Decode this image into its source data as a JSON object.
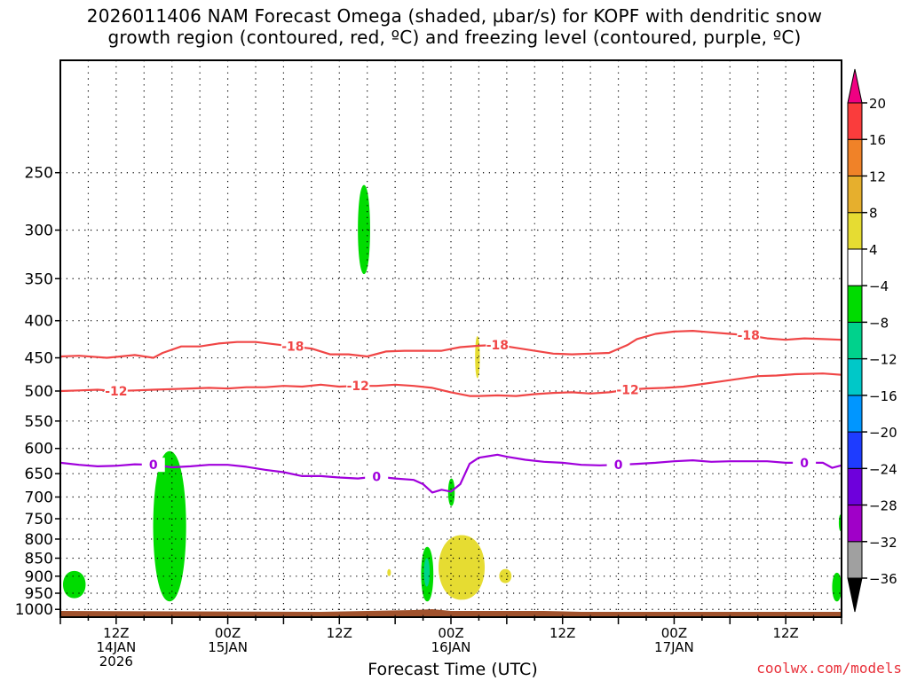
{
  "title_lines": [
    "2026011406 NAM Forecast Omega (shaded, µbar/s) for KOPF with dendritic snow",
    "growth region (contoured, red, ºC) and freezing level (contoured, purple, ºC)"
  ],
  "credit": "coolwx.com/models",
  "chart_data": {
    "type": "heatmap",
    "title": "2026011406 NAM Forecast Omega (shaded, µbar/s) for KOPF with dendritic snow growth region (contoured, red, ºC) and freezing level (contoured, purple, ºC)",
    "xlabel": "Forecast Time (UTC)",
    "ylabel": "",
    "x_unit": "hours since 2026-01-14 06Z",
    "xlim": [
      0,
      84
    ],
    "x_ticks": [
      {
        "hour": 6,
        "labels": [
          "12Z",
          "14JAN",
          "2026"
        ]
      },
      {
        "hour": 18,
        "labels": [
          "00Z",
          "15JAN"
        ]
      },
      {
        "hour": 30,
        "labels": [
          "12Z"
        ]
      },
      {
        "hour": 42,
        "labels": [
          "00Z",
          "16JAN"
        ]
      },
      {
        "hour": 54,
        "labels": [
          "12Z"
        ]
      },
      {
        "hour": 66,
        "labels": [
          "00Z",
          "17JAN"
        ]
      },
      {
        "hour": 78,
        "labels": [
          "12Z"
        ]
      }
    ],
    "y_scale": "log-pressure (hPa), inverted",
    "ylim": [
      1025,
      175
    ],
    "y_ticks": [
      250,
      300,
      350,
      400,
      450,
      500,
      550,
      600,
      650,
      700,
      750,
      800,
      850,
      900,
      950,
      1000
    ],
    "grid": true,
    "colorbar": {
      "levels": [
        -36,
        -32,
        -28,
        -24,
        -20,
        -16,
        -12,
        -8,
        -4,
        4,
        8,
        12,
        16,
        20
      ],
      "colors": [
        "#000000",
        "#a0a0a0",
        "#a000c8",
        "#6e00dc",
        "#1e3cff",
        "#0096ff",
        "#00c8c8",
        "#00d28c",
        "#00dc00",
        "#ffffff",
        "#e6dc32",
        "#e6af2d",
        "#f08228",
        "#fa3c3c",
        "#f00082"
      ]
    },
    "contours": [
      {
        "label": "-18",
        "color": "#f04646",
        "points": [
          [
            0,
            448
          ],
          [
            2,
            447
          ],
          [
            5,
            450
          ],
          [
            8,
            446
          ],
          [
            10,
            450
          ],
          [
            11,
            443
          ],
          [
            13,
            434
          ],
          [
            15,
            434
          ],
          [
            17,
            430
          ],
          [
            19,
            428
          ],
          [
            21,
            428
          ],
          [
            23,
            431
          ],
          [
            25,
            434
          ],
          [
            27,
            437
          ],
          [
            29,
            445
          ],
          [
            31,
            445
          ],
          [
            33,
            448
          ],
          [
            35,
            441
          ],
          [
            37,
            440
          ],
          [
            39,
            440
          ],
          [
            41,
            440
          ],
          [
            43,
            435
          ],
          [
            45,
            433
          ],
          [
            47,
            432
          ],
          [
            49,
            436
          ],
          [
            51,
            440
          ],
          [
            53,
            444
          ],
          [
            55,
            445
          ],
          [
            57,
            444
          ],
          [
            59,
            443
          ],
          [
            61,
            432
          ],
          [
            62,
            424
          ],
          [
            64,
            417
          ],
          [
            66,
            414
          ],
          [
            68,
            413
          ],
          [
            70,
            415
          ],
          [
            72,
            417
          ],
          [
            74,
            419
          ],
          [
            76,
            423
          ],
          [
            78,
            425
          ],
          [
            80,
            423
          ],
          [
            82,
            424
          ],
          [
            84,
            425
          ]
        ]
      },
      {
        "label": "-12",
        "color": "#f04646",
        "points": [
          [
            0,
            500
          ],
          [
            2,
            499
          ],
          [
            4,
            498
          ],
          [
            6,
            500
          ],
          [
            8,
            499
          ],
          [
            10,
            498
          ],
          [
            12,
            497
          ],
          [
            14,
            496
          ],
          [
            16,
            495
          ],
          [
            18,
            496
          ],
          [
            20,
            494
          ],
          [
            22,
            494
          ],
          [
            24,
            492
          ],
          [
            26,
            493
          ],
          [
            28,
            490
          ],
          [
            30,
            493
          ],
          [
            32,
            492
          ],
          [
            34,
            492
          ],
          [
            36,
            490
          ],
          [
            38,
            492
          ],
          [
            40,
            495
          ],
          [
            42,
            502
          ],
          [
            44,
            508
          ],
          [
            45,
            508
          ],
          [
            47,
            507
          ],
          [
            49,
            508
          ],
          [
            51,
            505
          ],
          [
            53,
            503
          ],
          [
            55,
            502
          ],
          [
            57,
            504
          ],
          [
            59,
            502
          ],
          [
            61,
            498
          ],
          [
            63,
            496
          ],
          [
            65,
            495
          ],
          [
            67,
            493
          ],
          [
            69,
            489
          ],
          [
            71,
            485
          ],
          [
            73,
            481
          ],
          [
            75,
            477
          ],
          [
            77,
            476
          ],
          [
            79,
            474
          ],
          [
            82,
            473
          ],
          [
            84,
            475
          ]
        ]
      },
      {
        "label": "0",
        "color": "#a000dc",
        "points": [
          [
            0,
            628
          ],
          [
            2,
            632
          ],
          [
            4,
            635
          ],
          [
            6,
            634
          ],
          [
            8,
            631
          ],
          [
            10,
            632
          ],
          [
            12,
            637
          ],
          [
            14,
            635
          ],
          [
            16,
            632
          ],
          [
            18,
            632
          ],
          [
            20,
            636
          ],
          [
            22,
            642
          ],
          [
            24,
            647
          ],
          [
            26,
            655
          ],
          [
            28,
            655
          ],
          [
            30,
            658
          ],
          [
            32,
            660
          ],
          [
            34,
            656
          ],
          [
            36,
            660
          ],
          [
            38,
            663
          ],
          [
            39,
            672
          ],
          [
            40,
            690
          ],
          [
            41,
            684
          ],
          [
            42,
            688
          ],
          [
            43,
            672
          ],
          [
            44,
            630
          ],
          [
            45,
            618
          ],
          [
            46,
            615
          ],
          [
            47,
            612
          ],
          [
            48,
            616
          ],
          [
            50,
            622
          ],
          [
            52,
            626
          ],
          [
            54,
            628
          ],
          [
            56,
            632
          ],
          [
            58,
            633
          ],
          [
            60,
            632
          ],
          [
            62,
            630
          ],
          [
            64,
            628
          ],
          [
            66,
            625
          ],
          [
            68,
            623
          ],
          [
            70,
            626
          ],
          [
            72,
            625
          ],
          [
            74,
            625
          ],
          [
            76,
            625
          ],
          [
            78,
            628
          ],
          [
            80,
            628
          ],
          [
            82,
            628
          ],
          [
            83,
            638
          ],
          [
            84,
            633
          ]
        ]
      }
    ],
    "shaded_regions": [
      {
        "color": "#00dc00",
        "range": "-8 to -4",
        "x_hours": [
          0.3,
          2.7
        ],
        "p_hPa": [
          885,
          965
        ]
      },
      {
        "color": "#00dc00",
        "range": "-8 to -4",
        "x_hours": [
          10.0,
          13.5
        ],
        "p_hPa": [
          605,
          975
        ]
      },
      {
        "color": "#00dc00",
        "range": "-8 to -4",
        "x_hours": [
          32.0,
          33.3
        ],
        "p_hPa": [
          260,
          345
        ]
      },
      {
        "color": "#00dc00",
        "range": "-8 to -4",
        "x_hours": [
          38.8,
          40.1
        ],
        "p_hPa": [
          820,
          975
        ]
      },
      {
        "color": "#00d28c",
        "range": "-12 to -8",
        "x_hours": [
          39.1,
          39.7
        ],
        "p_hPa": [
          850,
          930
        ]
      },
      {
        "color": "#00dc00",
        "range": "-8 to -4",
        "x_hours": [
          41.7,
          42.4
        ],
        "p_hPa": [
          660,
          720
        ]
      },
      {
        "color": "#00dc00",
        "range": "-8 to -4",
        "x_hours": [
          83.0,
          84.0
        ],
        "p_hPa": [
          890,
          975
        ]
      },
      {
        "color": "#00dc00",
        "range": "-8 to -4",
        "x_hours": [
          83.8,
          84.0
        ],
        "p_hPa": [
          740,
          780
        ]
      },
      {
        "color": "#e6dc32",
        "range": "4 to 8",
        "x_hours": [
          40.7,
          45.6
        ],
        "p_hPa": [
          790,
          970
        ]
      },
      {
        "color": "#e6dc32",
        "range": "4 to 8",
        "x_hours": [
          44.6,
          45.1
        ],
        "p_hPa": [
          420,
          480
        ]
      },
      {
        "color": "#e6dc32",
        "range": "4 to 8",
        "x_hours": [
          47.2,
          48.5
        ],
        "p_hPa": [
          880,
          920
        ]
      },
      {
        "color": "#e6dc32",
        "range": "4 to 8",
        "x_hours": [
          35.2,
          35.5
        ],
        "p_hPa": [
          880,
          900
        ]
      }
    ],
    "terrain": {
      "color": "#a0522d",
      "p_hPa_top": 1005
    }
  }
}
